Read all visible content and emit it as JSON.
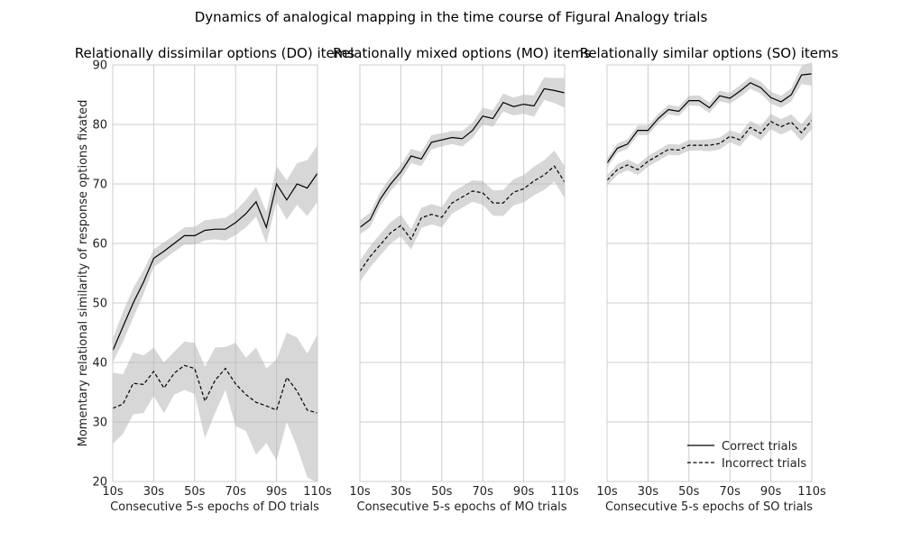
{
  "figure": {
    "suptitle": "Dynamics of analogical mapping in the time course of Figural Analogy trials",
    "ylabel": "Momentary relational similarity of response options fixated",
    "legend": {
      "correct": "Correct trials",
      "incorrect": "Incorrect trials",
      "placement": "lower-right of third panel"
    }
  },
  "chart_data": [
    {
      "type": "line",
      "title": "Relationally dissimilar options (DO) items",
      "xlabel": "Consecutive 5-s epochs of DO trials",
      "ylabel": "Momentary relational similarity of response options fixated",
      "x": [
        10,
        15,
        20,
        25,
        30,
        35,
        40,
        45,
        50,
        55,
        60,
        65,
        70,
        75,
        80,
        85,
        90,
        95,
        100,
        105,
        110
      ],
      "xticks": [
        "10s",
        "30s",
        "50s",
        "70s",
        "90s",
        "110s"
      ],
      "xlim": [
        10,
        110
      ],
      "ylim": [
        20,
        90
      ],
      "yticks": [
        20,
        30,
        40,
        50,
        60,
        70,
        80,
        90
      ],
      "grid": true,
      "series": [
        {
          "name": "Correct trials",
          "style": "solid",
          "values": [
            42,
            46,
            50,
            53.5,
            57.5,
            58.7,
            60,
            61.3,
            61.3,
            62.2,
            62.4,
            62.4,
            63.5,
            65,
            67,
            62.7,
            70,
            67.3,
            70,
            69.3,
            71.8
          ],
          "lower": [
            40,
            43.5,
            47.5,
            51.5,
            56,
            57.3,
            58.6,
            59.8,
            59.8,
            60.5,
            60.7,
            60.5,
            61.4,
            62.7,
            64.5,
            60,
            67,
            64,
            66.5,
            64.6,
            67
          ],
          "upper": [
            44,
            48.5,
            52.5,
            55.5,
            59,
            60.2,
            61.4,
            62.7,
            62.8,
            63.9,
            64.1,
            64.3,
            65.5,
            67.3,
            69.5,
            65.3,
            73,
            70.6,
            73.5,
            74,
            76.5
          ]
        },
        {
          "name": "Incorrect trials",
          "style": "dashed",
          "values": [
            32.3,
            33,
            36.5,
            36.3,
            38.5,
            35.7,
            38.2,
            39.5,
            39,
            33.5,
            37,
            39,
            36.4,
            34.6,
            33.3,
            32.7,
            32,
            37.5,
            35.2,
            32,
            31.5
          ],
          "lower": [
            26.3,
            28,
            31.3,
            31.5,
            34.4,
            31.5,
            34.6,
            35.4,
            34.7,
            27.3,
            31.5,
            35.4,
            29.3,
            28.5,
            24.5,
            26.5,
            23.5,
            30,
            25.8,
            20.7,
            19.8
          ],
          "upper": [
            38.3,
            38,
            41.7,
            41.2,
            42.5,
            40,
            41.8,
            43.5,
            43.3,
            39.3,
            42.5,
            42.6,
            43.3,
            40.8,
            42.5,
            39,
            40.5,
            45,
            44.2,
            41.5,
            44.7
          ]
        }
      ]
    },
    {
      "type": "line",
      "title": "Relationally mixed options (MO) items",
      "xlabel": "Consecutive 5-s epochs of MO trials",
      "x": [
        10,
        15,
        20,
        25,
        30,
        35,
        40,
        45,
        50,
        55,
        60,
        65,
        70,
        75,
        80,
        85,
        90,
        95,
        100,
        105,
        110
      ],
      "xticks": [
        "10s",
        "30s",
        "50s",
        "70s",
        "90s",
        "110s"
      ],
      "xlim": [
        10,
        110
      ],
      "ylim": [
        20,
        90
      ],
      "grid": true,
      "series": [
        {
          "name": "Correct trials",
          "style": "solid",
          "values": [
            62.7,
            64,
            67.5,
            70,
            72,
            74.7,
            74.2,
            77,
            77.4,
            77.8,
            77.6,
            79,
            81.4,
            81,
            83.7,
            83,
            83.4,
            83.1,
            86,
            85.7,
            85.3
          ],
          "lower": [
            61.5,
            62.8,
            66.3,
            68.8,
            70.8,
            73.5,
            73,
            75.8,
            76.3,
            76.7,
            76.3,
            77.7,
            80,
            79.6,
            82.2,
            81.5,
            81.8,
            81.3,
            84.1,
            83.6,
            82.8
          ],
          "upper": [
            63.9,
            65.2,
            68.7,
            71.2,
            73.2,
            75.9,
            75.4,
            78.2,
            78.5,
            78.9,
            78.9,
            80.3,
            82.8,
            82.4,
            85.2,
            84.5,
            85,
            84.9,
            87.9,
            87.8,
            87.8
          ]
        },
        {
          "name": "Incorrect trials",
          "style": "dashed",
          "values": [
            55.3,
            57.8,
            59.8,
            61.8,
            63,
            60.7,
            64.3,
            64.9,
            64.4,
            66.8,
            67.8,
            68.8,
            68.5,
            66.8,
            66.8,
            68.6,
            69.2,
            70.5,
            71.5,
            73,
            70.3
          ],
          "lower": [
            53.5,
            56,
            58,
            60,
            61.2,
            59,
            62.6,
            63.2,
            62.7,
            65,
            66,
            67,
            66.5,
            64.7,
            64.6,
            66.4,
            66.9,
            68.1,
            69,
            70.4,
            67.6
          ],
          "upper": [
            57.1,
            59.6,
            61.6,
            63.6,
            64.8,
            62.4,
            66,
            66.6,
            66.1,
            68.6,
            69.6,
            70.6,
            70.5,
            68.9,
            69,
            70.8,
            71.5,
            72.9,
            74,
            75.6,
            73
          ]
        }
      ]
    },
    {
      "type": "line",
      "title": "Relationally similar options (SO) items",
      "xlabel": "Consecutive 5-s epochs of SO trials",
      "x": [
        10,
        15,
        20,
        25,
        30,
        35,
        40,
        45,
        50,
        55,
        60,
        65,
        70,
        75,
        80,
        85,
        90,
        95,
        100,
        105,
        110
      ],
      "xticks": [
        "10s",
        "30s",
        "50s",
        "70s",
        "90s",
        "110s"
      ],
      "xlim": [
        10,
        110
      ],
      "ylim": [
        20,
        90
      ],
      "grid": true,
      "series": [
        {
          "name": "Correct trials",
          "style": "solid",
          "values": [
            73.5,
            76,
            76.7,
            79,
            79,
            81,
            82.5,
            82.2,
            84,
            84,
            82.8,
            84.8,
            84.4,
            85.6,
            87,
            86.2,
            84.5,
            83.8,
            85,
            88.3,
            88.5
          ],
          "lower": [
            72.7,
            75.2,
            75.9,
            78.2,
            78.2,
            80.2,
            81.7,
            81.4,
            83.2,
            83.1,
            81.9,
            83.9,
            83.5,
            84.6,
            86,
            85.2,
            83.5,
            82.8,
            83.9,
            86.8,
            86.5
          ],
          "upper": [
            74.3,
            76.8,
            77.5,
            79.8,
            79.8,
            81.8,
            83.3,
            83,
            84.8,
            84.9,
            83.7,
            85.7,
            85.3,
            86.6,
            88,
            87.2,
            85.5,
            84.8,
            86.1,
            89.8,
            90.5
          ]
        },
        {
          "name": "Incorrect trials",
          "style": "dashed",
          "values": [
            70.6,
            72.4,
            73.2,
            72.4,
            73.8,
            74.8,
            75.8,
            75.7,
            76.5,
            76.5,
            76.5,
            76.8,
            78,
            77.4,
            79.5,
            78.5,
            80.5,
            79.6,
            80.4,
            78.6,
            80.7
          ],
          "lower": [
            69.7,
            71.5,
            72.3,
            71.5,
            72.9,
            73.9,
            74.9,
            74.8,
            75.6,
            75.6,
            75.5,
            75.8,
            77,
            76.3,
            78.4,
            77.3,
            79.2,
            78.3,
            79.1,
            77.2,
            79.2
          ],
          "upper": [
            71.5,
            73.3,
            74.1,
            73.3,
            74.7,
            75.7,
            76.7,
            76.6,
            77.4,
            77.4,
            77.5,
            77.8,
            79,
            78.5,
            80.6,
            79.7,
            81.8,
            80.9,
            81.7,
            80,
            82.2
          ]
        }
      ]
    }
  ]
}
